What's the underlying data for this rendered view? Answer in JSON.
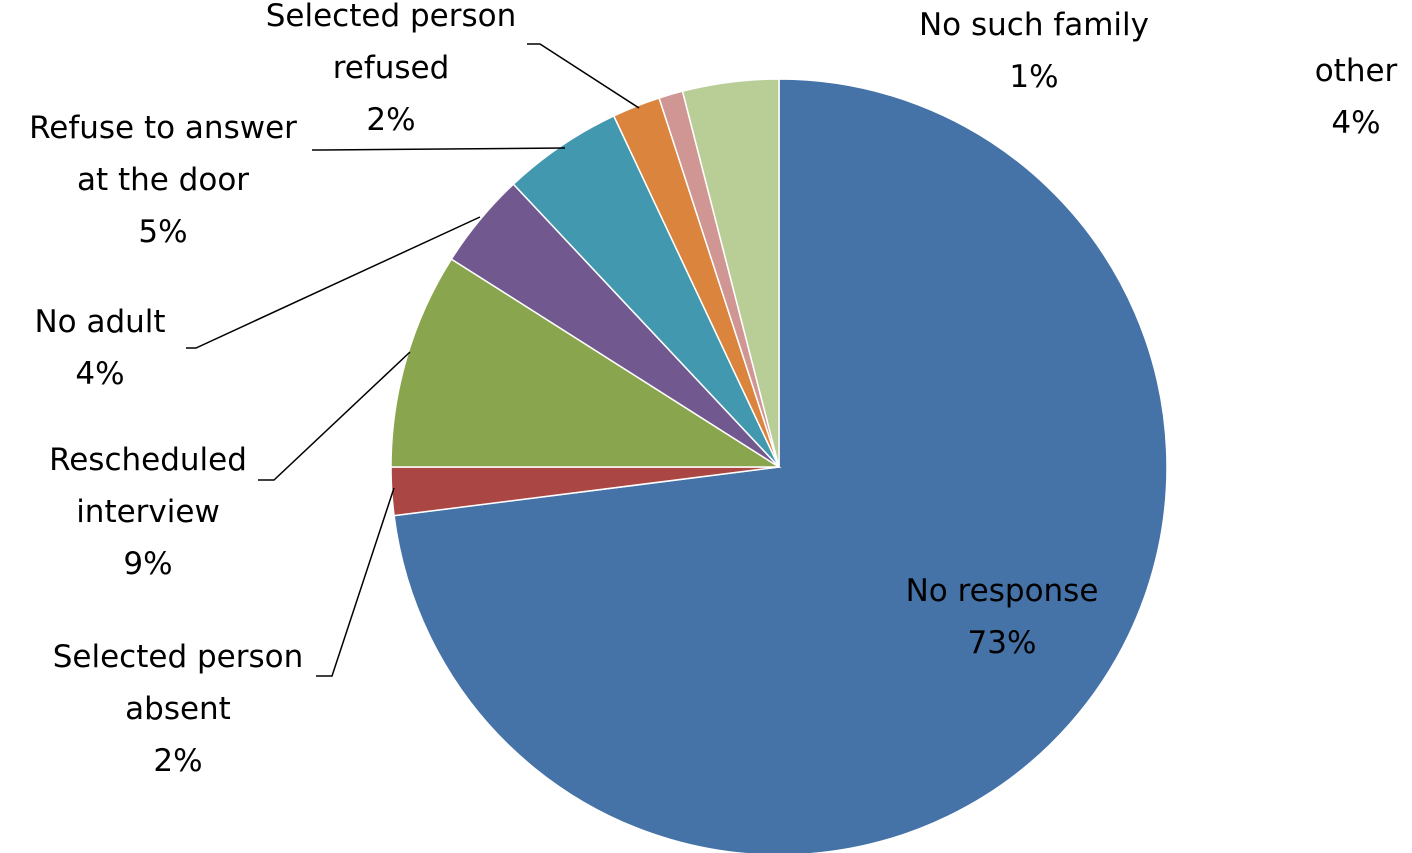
{
  "chart_data": {
    "type": "pie",
    "title": "",
    "slices": [
      {
        "name": "No response",
        "value": 73,
        "display": "73%",
        "color": "#4572A7"
      },
      {
        "name": "Selected person absent",
        "value": 2,
        "display": "2%",
        "color": "#AA4643",
        "label_lines": [
          "Selected person",
          "absent",
          "2%"
        ]
      },
      {
        "name": "Rescheduled interview",
        "value": 9,
        "display": "9%",
        "color": "#89A54E",
        "label_lines": [
          "Rescheduled",
          "interview",
          "9%"
        ]
      },
      {
        "name": "No adult",
        "value": 4,
        "display": "4%",
        "color": "#71588F",
        "label_lines": [
          "No adult",
          "4%"
        ]
      },
      {
        "name": "Refuse to answer at the door",
        "value": 5,
        "display": "5%",
        "color": "#4198AF",
        "label_lines": [
          "Refuse to answer",
          "at the door",
          "5%"
        ]
      },
      {
        "name": "Selected person refused",
        "value": 2,
        "display": "2%",
        "color": "#DB843D",
        "label_lines": [
          "Selected person",
          "refused",
          "2%"
        ]
      },
      {
        "name": "No such family",
        "value": 1,
        "display": "1%",
        "color": "#D09693",
        "label_lines": [
          "No such family",
          "1%"
        ]
      },
      {
        "name": "other",
        "value": 4,
        "display": "4%",
        "color": "#B9CD96",
        "label_lines": [
          "other",
          "4%"
        ]
      }
    ],
    "inside_label_lines": [
      "No response",
      "73%"
    ],
    "legend": "none"
  }
}
